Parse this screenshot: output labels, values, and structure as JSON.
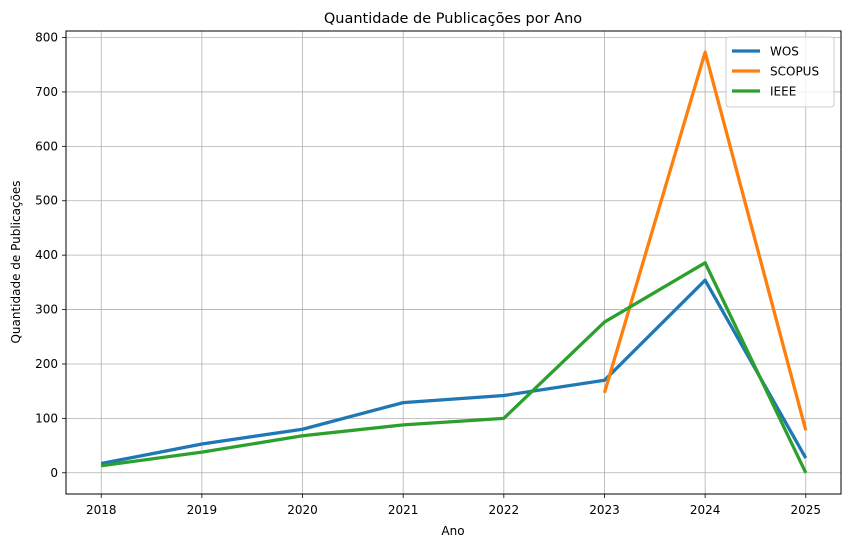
{
  "chart_data": {
    "type": "line",
    "title": "Quantidade de Publicações por Ano",
    "xlabel": "Ano",
    "ylabel": "Quantidade de Publicações",
    "x": [
      2018,
      2019,
      2020,
      2021,
      2022,
      2023,
      2024,
      2025
    ],
    "xticks": [
      "2018",
      "2019",
      "2020",
      "2021",
      "2022",
      "2023",
      "2024",
      "2025"
    ],
    "yticks": [
      "0",
      "100",
      "200",
      "300",
      "400",
      "500",
      "600",
      "700",
      "800"
    ],
    "xlim": [
      2017.65,
      2025.35
    ],
    "ylim": [
      -39,
      812
    ],
    "grid": true,
    "legend_position": "top-right",
    "series": [
      {
        "name": "WOS",
        "color": "#1f77b4",
        "x": [
          2018,
          2019,
          2020,
          2021,
          2022,
          2023,
          2024,
          2025
        ],
        "values": [
          17,
          53,
          80,
          129,
          142,
          170,
          354,
          27
        ]
      },
      {
        "name": "SCOPUS",
        "color": "#ff7f0e",
        "x": [
          2023,
          2024,
          2025
        ],
        "values": [
          147,
          773,
          78
        ]
      },
      {
        "name": "IEEE",
        "color": "#2ca02c",
        "x": [
          2018,
          2019,
          2020,
          2021,
          2022,
          2023,
          2024,
          2025
        ],
        "values": [
          13,
          38,
          68,
          88,
          100,
          277,
          386,
          0
        ]
      }
    ]
  }
}
